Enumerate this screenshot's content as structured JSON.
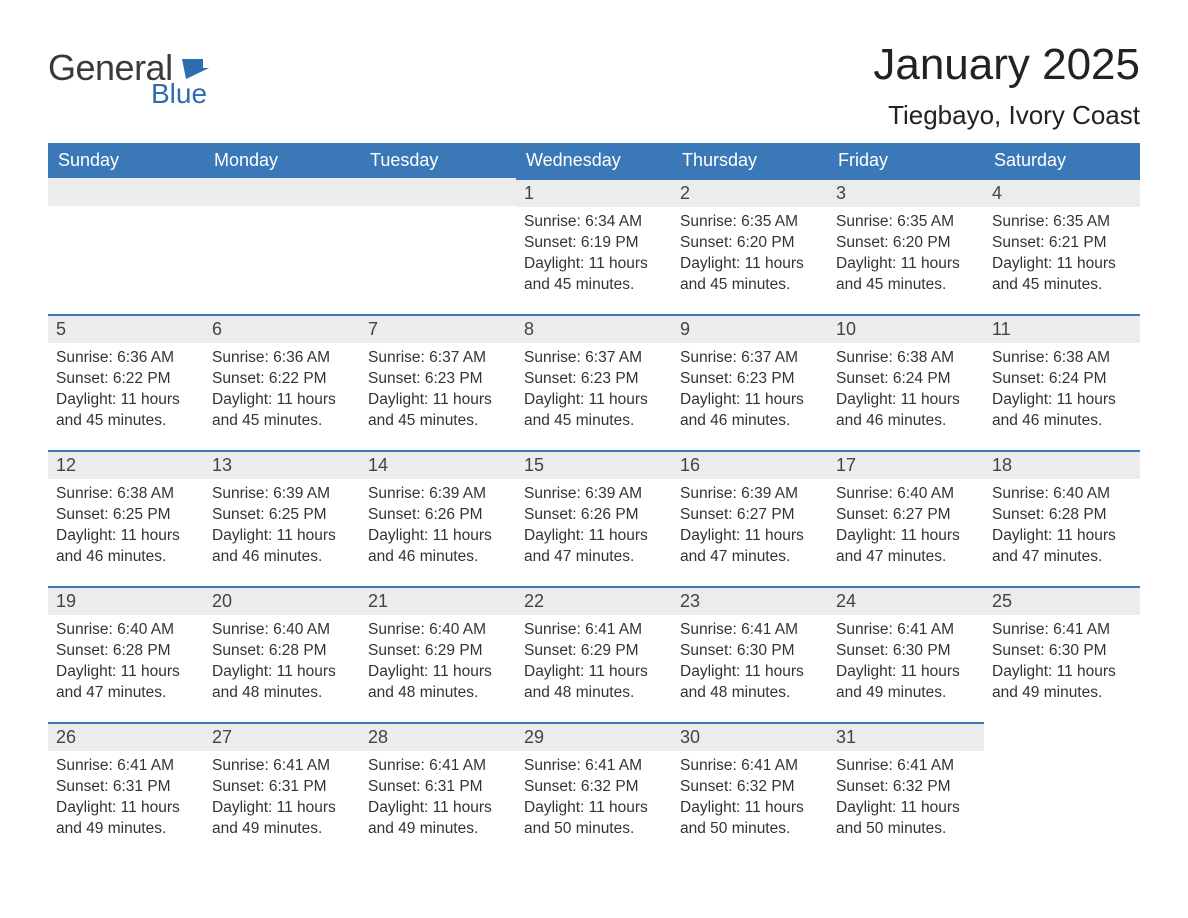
{
  "logo": {
    "text1": "General",
    "text2": "Blue",
    "color_general": "#3a3a3a",
    "color_blue": "#2e6eb0",
    "flag_color": "#2e6eb0"
  },
  "title": "January 2025",
  "location": "Tiegbayo, Ivory Coast",
  "colors": {
    "header_bg": "#3b78b8",
    "header_fg": "#ffffff",
    "daynum_bg": "#ececec",
    "daynum_border": "#3b78b8",
    "body_bg": "#ffffff",
    "text": "#333333"
  },
  "day_headers": [
    "Sunday",
    "Monday",
    "Tuesday",
    "Wednesday",
    "Thursday",
    "Friday",
    "Saturday"
  ],
  "weeks": [
    [
      null,
      null,
      null,
      {
        "n": "1",
        "sunrise": "6:34 AM",
        "sunset": "6:19 PM",
        "daylight": "11 hours and 45 minutes."
      },
      {
        "n": "2",
        "sunrise": "6:35 AM",
        "sunset": "6:20 PM",
        "daylight": "11 hours and 45 minutes."
      },
      {
        "n": "3",
        "sunrise": "6:35 AM",
        "sunset": "6:20 PM",
        "daylight": "11 hours and 45 minutes."
      },
      {
        "n": "4",
        "sunrise": "6:35 AM",
        "sunset": "6:21 PM",
        "daylight": "11 hours and 45 minutes."
      }
    ],
    [
      {
        "n": "5",
        "sunrise": "6:36 AM",
        "sunset": "6:22 PM",
        "daylight": "11 hours and 45 minutes."
      },
      {
        "n": "6",
        "sunrise": "6:36 AM",
        "sunset": "6:22 PM",
        "daylight": "11 hours and 45 minutes."
      },
      {
        "n": "7",
        "sunrise": "6:37 AM",
        "sunset": "6:23 PM",
        "daylight": "11 hours and 45 minutes."
      },
      {
        "n": "8",
        "sunrise": "6:37 AM",
        "sunset": "6:23 PM",
        "daylight": "11 hours and 45 minutes."
      },
      {
        "n": "9",
        "sunrise": "6:37 AM",
        "sunset": "6:23 PM",
        "daylight": "11 hours and 46 minutes."
      },
      {
        "n": "10",
        "sunrise": "6:38 AM",
        "sunset": "6:24 PM",
        "daylight": "11 hours and 46 minutes."
      },
      {
        "n": "11",
        "sunrise": "6:38 AM",
        "sunset": "6:24 PM",
        "daylight": "11 hours and 46 minutes."
      }
    ],
    [
      {
        "n": "12",
        "sunrise": "6:38 AM",
        "sunset": "6:25 PM",
        "daylight": "11 hours and 46 minutes."
      },
      {
        "n": "13",
        "sunrise": "6:39 AM",
        "sunset": "6:25 PM",
        "daylight": "11 hours and 46 minutes."
      },
      {
        "n": "14",
        "sunrise": "6:39 AM",
        "sunset": "6:26 PM",
        "daylight": "11 hours and 46 minutes."
      },
      {
        "n": "15",
        "sunrise": "6:39 AM",
        "sunset": "6:26 PM",
        "daylight": "11 hours and 47 minutes."
      },
      {
        "n": "16",
        "sunrise": "6:39 AM",
        "sunset": "6:27 PM",
        "daylight": "11 hours and 47 minutes."
      },
      {
        "n": "17",
        "sunrise": "6:40 AM",
        "sunset": "6:27 PM",
        "daylight": "11 hours and 47 minutes."
      },
      {
        "n": "18",
        "sunrise": "6:40 AM",
        "sunset": "6:28 PM",
        "daylight": "11 hours and 47 minutes."
      }
    ],
    [
      {
        "n": "19",
        "sunrise": "6:40 AM",
        "sunset": "6:28 PM",
        "daylight": "11 hours and 47 minutes."
      },
      {
        "n": "20",
        "sunrise": "6:40 AM",
        "sunset": "6:28 PM",
        "daylight": "11 hours and 48 minutes."
      },
      {
        "n": "21",
        "sunrise": "6:40 AM",
        "sunset": "6:29 PM",
        "daylight": "11 hours and 48 minutes."
      },
      {
        "n": "22",
        "sunrise": "6:41 AM",
        "sunset": "6:29 PM",
        "daylight": "11 hours and 48 minutes."
      },
      {
        "n": "23",
        "sunrise": "6:41 AM",
        "sunset": "6:30 PM",
        "daylight": "11 hours and 48 minutes."
      },
      {
        "n": "24",
        "sunrise": "6:41 AM",
        "sunset": "6:30 PM",
        "daylight": "11 hours and 49 minutes."
      },
      {
        "n": "25",
        "sunrise": "6:41 AM",
        "sunset": "6:30 PM",
        "daylight": "11 hours and 49 minutes."
      }
    ],
    [
      {
        "n": "26",
        "sunrise": "6:41 AM",
        "sunset": "6:31 PM",
        "daylight": "11 hours and 49 minutes."
      },
      {
        "n": "27",
        "sunrise": "6:41 AM",
        "sunset": "6:31 PM",
        "daylight": "11 hours and 49 minutes."
      },
      {
        "n": "28",
        "sunrise": "6:41 AM",
        "sunset": "6:31 PM",
        "daylight": "11 hours and 49 minutes."
      },
      {
        "n": "29",
        "sunrise": "6:41 AM",
        "sunset": "6:32 PM",
        "daylight": "11 hours and 50 minutes."
      },
      {
        "n": "30",
        "sunrise": "6:41 AM",
        "sunset": "6:32 PM",
        "daylight": "11 hours and 50 minutes."
      },
      {
        "n": "31",
        "sunrise": "6:41 AM",
        "sunset": "6:32 PM",
        "daylight": "11 hours and 50 minutes."
      },
      null
    ]
  ],
  "labels": {
    "sunrise": "Sunrise: ",
    "sunset": "Sunset: ",
    "daylight": "Daylight: "
  }
}
